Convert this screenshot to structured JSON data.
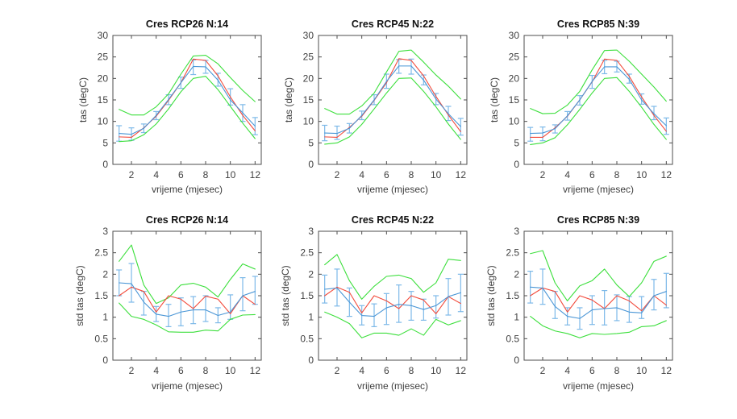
{
  "figure": {
    "background": "#ffffff",
    "grid_rows": 2,
    "grid_cols": 3,
    "x_axis_label": "vrijeme (mjesec)",
    "top_row_y_label": "tas (degC)",
    "bottom_row_y_label": "std tas (degC)"
  },
  "colors": {
    "envelope": "#3cdf3c",
    "median": "#f24b3c",
    "mean_line": "#4a96d6",
    "error_bar": "#7db9e8",
    "axis": "#4d4d4d",
    "tick_text": "#404040",
    "title_text": "#111111"
  },
  "chart_data": [
    {
      "type": "line",
      "title": "Cres RCP26 N:14",
      "xlabel": "vrijeme (mjesec)",
      "ylabel": "tas (degC)",
      "xlim": [
        0.5,
        12.5
      ],
      "ylim": [
        0,
        30
      ],
      "xticks": [
        2,
        4,
        6,
        8,
        10,
        12
      ],
      "yticks": [
        0,
        5,
        10,
        15,
        20,
        25,
        30
      ],
      "grid": false,
      "legend": "none",
      "x": [
        1,
        2,
        3,
        4,
        5,
        6,
        7,
        8,
        9,
        10,
        11,
        12
      ],
      "series": [
        {
          "name": "upper-envelope",
          "color_key": "envelope",
          "values": [
            12.8,
            11.5,
            11.5,
            13.4,
            16.4,
            21.0,
            25.2,
            25.4,
            23.4,
            20.2,
            17.2,
            14.6
          ]
        },
        {
          "name": "lower-envelope",
          "color_key": "envelope",
          "values": [
            5.3,
            5.5,
            6.9,
            9.4,
            12.9,
            16.9,
            20.0,
            20.5,
            17.4,
            13.5,
            9.6,
            6.0
          ]
        },
        {
          "name": "median",
          "color_key": "median",
          "values": [
            6.4,
            6.3,
            8.5,
            11.2,
            14.9,
            19.0,
            24.5,
            24.2,
            20.6,
            15.7,
            11.4,
            7.8
          ]
        },
        {
          "name": "ensemble-mean",
          "color_key": "mean_line",
          "errorbar": true,
          "values": [
            7.2,
            7.0,
            8.4,
            11.4,
            15.1,
            19.0,
            22.8,
            22.7,
            19.6,
            15.0,
            12.0,
            8.9
          ],
          "err_lo": [
            5.4,
            5.6,
            7.4,
            10.4,
            13.9,
            17.7,
            20.9,
            21.2,
            18.2,
            13.8,
            10.0,
            6.9
          ],
          "err_hi": [
            9.0,
            8.5,
            9.4,
            12.3,
            16.2,
            20.3,
            24.3,
            24.2,
            21.2,
            17.6,
            13.9,
            10.9
          ]
        }
      ]
    },
    {
      "type": "line",
      "title": "Cres RCP45 N:22",
      "xlabel": "vrijeme (mjesec)",
      "ylabel": "tas (degC)",
      "xlim": [
        0.5,
        12.5
      ],
      "ylim": [
        0,
        30
      ],
      "xticks": [
        2,
        4,
        6,
        8,
        10,
        12
      ],
      "yticks": [
        0,
        5,
        10,
        15,
        20,
        25,
        30
      ],
      "grid": false,
      "legend": "none",
      "x": [
        1,
        2,
        3,
        4,
        5,
        6,
        7,
        8,
        9,
        10,
        11,
        12
      ],
      "series": [
        {
          "name": "upper-envelope",
          "color_key": "envelope",
          "values": [
            13.0,
            11.7,
            11.7,
            13.6,
            16.6,
            21.5,
            26.3,
            26.6,
            23.8,
            20.8,
            18.2,
            15.2
          ]
        },
        {
          "name": "lower-envelope",
          "color_key": "envelope",
          "values": [
            4.7,
            5.0,
            6.4,
            9.3,
            12.9,
            16.6,
            20.0,
            20.1,
            17.0,
            13.4,
            9.4,
            5.8
          ]
        },
        {
          "name": "median",
          "color_key": "median",
          "values": [
            6.4,
            6.3,
            8.6,
            11.2,
            14.9,
            19.0,
            24.6,
            24.2,
            20.6,
            15.8,
            11.5,
            7.6
          ]
        },
        {
          "name": "ensemble-mean",
          "color_key": "mean_line",
          "errorbar": true,
          "values": [
            7.3,
            7.2,
            8.4,
            11.4,
            15.0,
            19.3,
            22.9,
            22.9,
            19.6,
            15.2,
            11.8,
            8.8
          ],
          "err_lo": [
            5.5,
            5.8,
            7.3,
            10.4,
            13.9,
            17.7,
            21.2,
            21.0,
            18.5,
            13.9,
            10.2,
            6.8
          ],
          "err_hi": [
            9.1,
            8.9,
            9.5,
            12.4,
            16.2,
            21.0,
            24.4,
            24.5,
            20.8,
            16.5,
            13.5,
            10.7
          ]
        }
      ]
    },
    {
      "type": "line",
      "title": "Cres RCP85 N:39",
      "xlabel": "vrijeme (mjesec)",
      "ylabel": "tas (degC)",
      "xlim": [
        0.5,
        12.5
      ],
      "ylim": [
        0,
        30
      ],
      "xticks": [
        2,
        4,
        6,
        8,
        10,
        12
      ],
      "yticks": [
        0,
        5,
        10,
        15,
        20,
        25,
        30
      ],
      "grid": false,
      "legend": "none",
      "x": [
        1,
        2,
        3,
        4,
        5,
        6,
        7,
        8,
        9,
        10,
        11,
        12
      ],
      "series": [
        {
          "name": "upper-envelope",
          "color_key": "envelope",
          "values": [
            13.0,
            11.8,
            11.9,
            13.8,
            17.0,
            22.0,
            26.5,
            26.6,
            24.0,
            21.0,
            18.0,
            14.7
          ]
        },
        {
          "name": "lower-envelope",
          "color_key": "envelope",
          "values": [
            4.6,
            5.0,
            6.2,
            9.2,
            12.8,
            16.6,
            20.0,
            20.2,
            17.0,
            13.3,
            9.3,
            5.8
          ]
        },
        {
          "name": "median",
          "color_key": "median",
          "values": [
            6.3,
            6.3,
            8.5,
            11.2,
            15.0,
            19.2,
            24.5,
            24.2,
            20.5,
            15.7,
            11.4,
            7.7
          ]
        },
        {
          "name": "ensemble-mean",
          "color_key": "mean_line",
          "errorbar": true,
          "values": [
            7.2,
            7.3,
            8.3,
            11.3,
            15.0,
            19.3,
            22.7,
            22.7,
            19.8,
            15.0,
            11.8,
            9.0
          ],
          "err_lo": [
            5.4,
            5.5,
            7.3,
            10.3,
            13.8,
            17.7,
            21.1,
            21.5,
            18.9,
            14.0,
            10.4,
            7.0
          ],
          "err_hi": [
            8.6,
            8.7,
            9.2,
            12.3,
            16.0,
            20.7,
            24.2,
            24.0,
            21.0,
            16.4,
            13.5,
            10.8
          ]
        }
      ]
    },
    {
      "type": "line",
      "title": "Cres RCP26 N:14",
      "xlabel": "vrijeme (mjesec)",
      "ylabel": "std tas (degC)",
      "xlim": [
        0.5,
        12.5
      ],
      "ylim": [
        0,
        3
      ],
      "xticks": [
        2,
        4,
        6,
        8,
        10,
        12
      ],
      "yticks": [
        0,
        0.5,
        1,
        1.5,
        2,
        2.5,
        3
      ],
      "grid": false,
      "legend": "none",
      "x": [
        1,
        2,
        3,
        4,
        5,
        6,
        7,
        8,
        9,
        10,
        11,
        12
      ],
      "series": [
        {
          "name": "upper-envelope",
          "color_key": "envelope",
          "values": [
            2.3,
            2.68,
            1.75,
            1.32,
            1.45,
            1.75,
            1.79,
            1.7,
            1.47,
            1.88,
            2.24,
            2.12
          ]
        },
        {
          "name": "lower-envelope",
          "color_key": "envelope",
          "values": [
            1.33,
            1.02,
            0.95,
            0.82,
            0.66,
            0.65,
            0.65,
            0.7,
            0.68,
            0.95,
            1.05,
            1.06
          ]
        },
        {
          "name": "median",
          "color_key": "median",
          "values": [
            1.5,
            1.7,
            1.6,
            1.12,
            1.5,
            1.42,
            1.2,
            1.49,
            1.42,
            1.08,
            1.5,
            1.3
          ]
        },
        {
          "name": "ensemble-mean",
          "color_key": "mean_line",
          "errorbar": true,
          "values": [
            1.8,
            1.78,
            1.35,
            1.07,
            1.02,
            1.12,
            1.17,
            1.17,
            1.04,
            1.12,
            1.5,
            1.6
          ],
          "err_lo": [
            1.5,
            1.35,
            1.05,
            0.9,
            0.78,
            0.8,
            0.85,
            0.9,
            0.87,
            0.95,
            1.15,
            1.3
          ],
          "err_hi": [
            2.1,
            2.25,
            1.6,
            1.25,
            1.3,
            1.45,
            1.48,
            1.5,
            1.22,
            1.52,
            1.92,
            1.95
          ]
        }
      ]
    },
    {
      "type": "line",
      "title": "Cres RCP45 N:22",
      "xlabel": "vrijeme (mjesec)",
      "ylabel": "std tas (degC)",
      "xlim": [
        0.5,
        12.5
      ],
      "ylim": [
        0,
        3
      ],
      "xticks": [
        2,
        4,
        6,
        8,
        10,
        12
      ],
      "yticks": [
        0,
        0.5,
        1,
        1.5,
        2,
        2.5,
        3
      ],
      "grid": false,
      "legend": "none",
      "x": [
        1,
        2,
        3,
        4,
        5,
        6,
        7,
        8,
        9,
        10,
        11,
        12
      ],
      "series": [
        {
          "name": "upper-envelope",
          "color_key": "envelope",
          "values": [
            2.22,
            2.46,
            1.85,
            1.42,
            1.72,
            1.95,
            1.98,
            1.9,
            1.58,
            1.8,
            2.35,
            2.32
          ]
        },
        {
          "name": "lower-envelope",
          "color_key": "envelope",
          "values": [
            1.12,
            1.0,
            0.85,
            0.52,
            0.63,
            0.63,
            0.58,
            0.73,
            0.58,
            0.95,
            0.82,
            0.92
          ]
        },
        {
          "name": "median",
          "color_key": "median",
          "values": [
            1.5,
            1.7,
            1.58,
            1.1,
            1.5,
            1.38,
            1.2,
            1.5,
            1.4,
            1.08,
            1.48,
            1.32
          ]
        },
        {
          "name": "ensemble-mean",
          "color_key": "mean_line",
          "errorbar": true,
          "values": [
            1.65,
            1.68,
            1.35,
            1.04,
            1.02,
            1.22,
            1.3,
            1.27,
            1.18,
            1.27,
            1.48,
            1.57
          ],
          "err_lo": [
            1.33,
            1.26,
            1.02,
            0.82,
            0.78,
            0.83,
            0.88,
            0.93,
            0.93,
            0.98,
            1.05,
            1.13
          ],
          "err_hi": [
            1.98,
            2.12,
            1.68,
            1.27,
            1.31,
            1.55,
            1.75,
            1.6,
            1.42,
            1.5,
            1.9,
            2.0
          ]
        }
      ]
    },
    {
      "type": "line",
      "title": "Cres RCP85 N:39",
      "xlabel": "vrijeme (mjesec)",
      "ylabel": "std tas (degC)",
      "xlim": [
        0.5,
        12.5
      ],
      "ylim": [
        0,
        3
      ],
      "xticks": [
        2,
        4,
        6,
        8,
        10,
        12
      ],
      "yticks": [
        0,
        0.5,
        1,
        1.5,
        2,
        2.5,
        3
      ],
      "grid": false,
      "legend": "none",
      "x": [
        1,
        2,
        3,
        4,
        5,
        6,
        7,
        8,
        9,
        10,
        11,
        12
      ],
      "series": [
        {
          "name": "upper-envelope",
          "color_key": "envelope",
          "values": [
            2.48,
            2.55,
            1.8,
            1.38,
            1.73,
            1.85,
            2.12,
            1.75,
            1.48,
            1.8,
            2.3,
            2.42
          ]
        },
        {
          "name": "lower-envelope",
          "color_key": "envelope",
          "values": [
            1.02,
            0.8,
            0.68,
            0.62,
            0.52,
            0.62,
            0.6,
            0.62,
            0.65,
            0.78,
            0.8,
            0.92
          ]
        },
        {
          "name": "median",
          "color_key": "median",
          "values": [
            1.5,
            1.68,
            1.6,
            1.12,
            1.5,
            1.4,
            1.2,
            1.5,
            1.38,
            1.15,
            1.5,
            1.28
          ]
        },
        {
          "name": "ensemble-mean",
          "color_key": "mean_line",
          "errorbar": true,
          "values": [
            1.7,
            1.68,
            1.25,
            1.02,
            0.97,
            1.17,
            1.2,
            1.22,
            1.12,
            1.1,
            1.5,
            1.6
          ],
          "err_lo": [
            1.33,
            1.3,
            0.97,
            0.82,
            0.72,
            0.83,
            0.82,
            0.92,
            0.88,
            0.97,
            1.17,
            1.22
          ],
          "err_hi": [
            2.07,
            2.12,
            1.6,
            1.22,
            1.22,
            1.5,
            1.62,
            1.52,
            1.48,
            1.48,
            1.88,
            2.02
          ]
        }
      ]
    }
  ]
}
